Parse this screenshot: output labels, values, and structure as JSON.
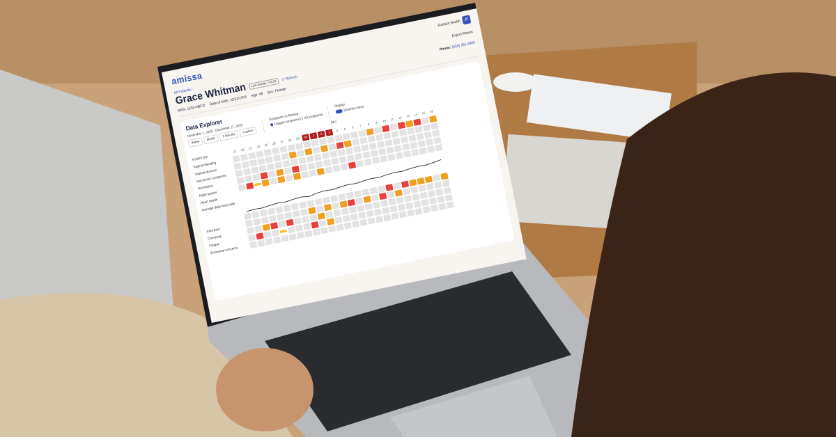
{
  "app": {
    "logo": "amissa",
    "user": "Radiant Health",
    "avatar": "JP",
    "export": "Export Report",
    "phone_label": "Phone:",
    "phone": "(555) 366-3405"
  },
  "patient": {
    "breadcrumb": "All Patients /",
    "name": "Grace Whitman",
    "last_activity": "Last activity 1:35:36",
    "refresh": "Refresh",
    "mrn": "MRN: 1234-ABCD",
    "dob": "Date of birth: 10/31/1976",
    "age": "Age: 48",
    "sex": "Sex: Female"
  },
  "explorer": {
    "title": "Data Explorer",
    "range": "November 1, 2025 - December 17, 2025",
    "ranges": [
      "Week",
      "Month",
      "3 Months",
      "Custom"
    ],
    "symptoms_label": "Symptoms to Review",
    "opt_logged": "Logged symptoms",
    "opt_all": "All symptoms",
    "display_label": "Display",
    "severity": "Severity colors",
    "month": "DEC",
    "symptom_header": "SYMPTOM",
    "days": [
      "21",
      "22",
      "23",
      "24",
      "25",
      "26",
      "27",
      "28",
      "29",
      "30",
      "1",
      "2",
      "3",
      "4",
      "5",
      "6",
      "7",
      "8",
      "9",
      "10",
      "11",
      "12",
      "13",
      "14",
      "15",
      "16"
    ],
    "highlight_days": [
      "30",
      "1",
      "2",
      "3"
    ],
    "rows": [
      {
        "label": "Vaginal bleeding",
        "cells": "00000000000000000102021201"
      },
      {
        "label": "Vaginal dryness",
        "cells": "00000001010102100000000000"
      },
      {
        "label": "Vasomotor symptoms",
        "cells": "00000000000000000000000000"
      },
      {
        "label": "Hot flashes",
        "cells": "00020102000000000000000000"
      },
      {
        "label": "Night sweats",
        "cells": "02310101001000200000000000"
      },
      {
        "label": "Heart health",
        "cells": ""
      },
      {
        "label": "Average daily heart rate",
        "cells": "line"
      },
      {
        "label": "",
        "cells": "00000000000000000020211101"
      },
      {
        "label": "Joint pain",
        "cells": "00000000101012010201000000"
      },
      {
        "label": "Cramping",
        "cells": "00120200010000000000000000"
      },
      {
        "label": "Fatigue",
        "cells": "02003000201000000000000000"
      },
      {
        "label": "Emotional concerns",
        "cells": "00000000000000000000000000"
      }
    ],
    "heart_rate": [
      72,
      74,
      73,
      76,
      78,
      77,
      80,
      82,
      79,
      84,
      86,
      85,
      88,
      90,
      89,
      92,
      94,
      93,
      96,
      98,
      97,
      100,
      102,
      101,
      104,
      108
    ]
  },
  "colors": {
    "brand": "#3552b8",
    "mild": "#f2c030",
    "moderate": "#f0a020",
    "severe": "#e8403c",
    "very_severe": "#b01e1e"
  }
}
